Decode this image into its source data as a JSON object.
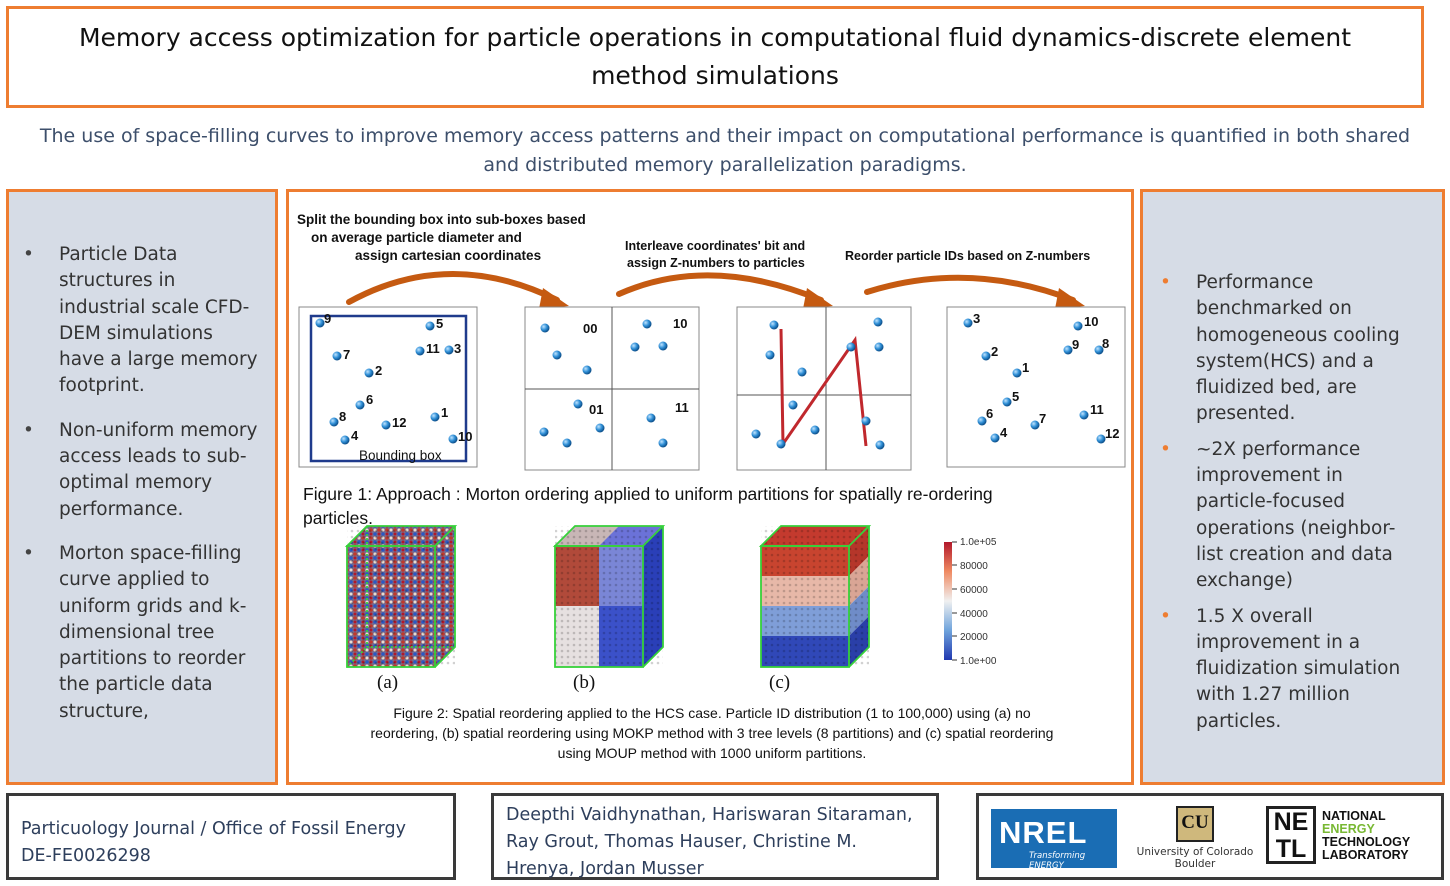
{
  "title": "Memory access optimization for particle operations in computational fluid dynamics-discrete element method simulations",
  "subtitle": "The use of space-filling curves to improve memory access patterns and their impact on computational performance is quantified in both shared and distributed memory parallelization paradigms.",
  "left_bullets": [
    "Particle Data structures in industrial scale CFD-DEM simulations have a large memory footprint.",
    "Non-uniform memory access leads to sub-optimal memory performance.",
    "Morton space-filling curve applied to uniform grids and k-dimensional tree partitions to reorder the particle data structure,"
  ],
  "right_bullets": [
    "Performance benchmarked on homogeneous cooling system(HCS) and a fluidized bed, are presented.",
    "~2X performance improvement in particle-focused operations (neighbor-list creation and data exchange)",
    "1.5 X overall improvement in a fluidization simulation with 1.27 million particles."
  ],
  "figure1": {
    "step1_line1": "Split the bounding box into sub-boxes based",
    "step1_line2": "on average particle diameter and",
    "step1_line3": "assign cartesian coordinates",
    "step2_line1": "Interleave coordinates' bit and",
    "step2_line2": "assign Z-numbers to particles",
    "step3": "Reorder particle IDs based on Z-numbers",
    "bounding_box_label": "Bounding box",
    "quadrant_labels": [
      "00",
      "10",
      "01",
      "11"
    ],
    "panel1_ids": [
      "9",
      "5",
      "11",
      "3",
      "7",
      "2",
      "6",
      "8",
      "12",
      "1",
      "4",
      "10"
    ],
    "panel4_ids": [
      "3",
      "10",
      "9",
      "8",
      "2",
      "1",
      "5",
      "6",
      "7",
      "4",
      "11",
      "12"
    ],
    "caption_line1": "Figure 1: Approach : Morton ordering applied to uniform partitions for spatially re-ordering",
    "caption_line2": "particles."
  },
  "figure2": {
    "panel_labels": [
      "(a)",
      "(b)",
      "(c)"
    ],
    "colorbar_ticks": [
      "1.0e+05",
      "80000",
      "60000",
      "40000",
      "20000",
      "1.0e+00"
    ],
    "caption_line1": "Figure 2: Spatial reordering applied to the HCS case. Particle ID distribution (1 to 100,000) using (a) no",
    "caption_line2": "reordering, (b) spatial reordering using MOKP method with 3 tree levels (8 partitions) and (c) spatial reordering",
    "caption_line3": "using MOUP method with 1000 uniform partitions."
  },
  "footer": {
    "journal_line1": "Particuology Journal / Office of Fossil Energy",
    "journal_line2": "DE-FE0026298",
    "authors": "Deepthi Vaidhynathan, Hariswaran Sitaraman, Ray Grout, Thomas Hauser, Christine M. Hrenya, Jordan Musser",
    "nrel_logo": "NREL",
    "nrel_tagline": "Transforming ENERGY",
    "cu_line1": "University of Colorado",
    "cu_line2": "Boulder",
    "netl_mark": "NETL",
    "netl_line1": "NATIONAL",
    "netl_line2": "ENERGY",
    "netl_line3": "TECHNOLOGY",
    "netl_line4": "LABORATORY"
  },
  "colors": {
    "accent": "#ee7d31",
    "panel_bg": "#d6dce6",
    "arrow": "#c55a11",
    "particle": "#2f8fd6"
  }
}
